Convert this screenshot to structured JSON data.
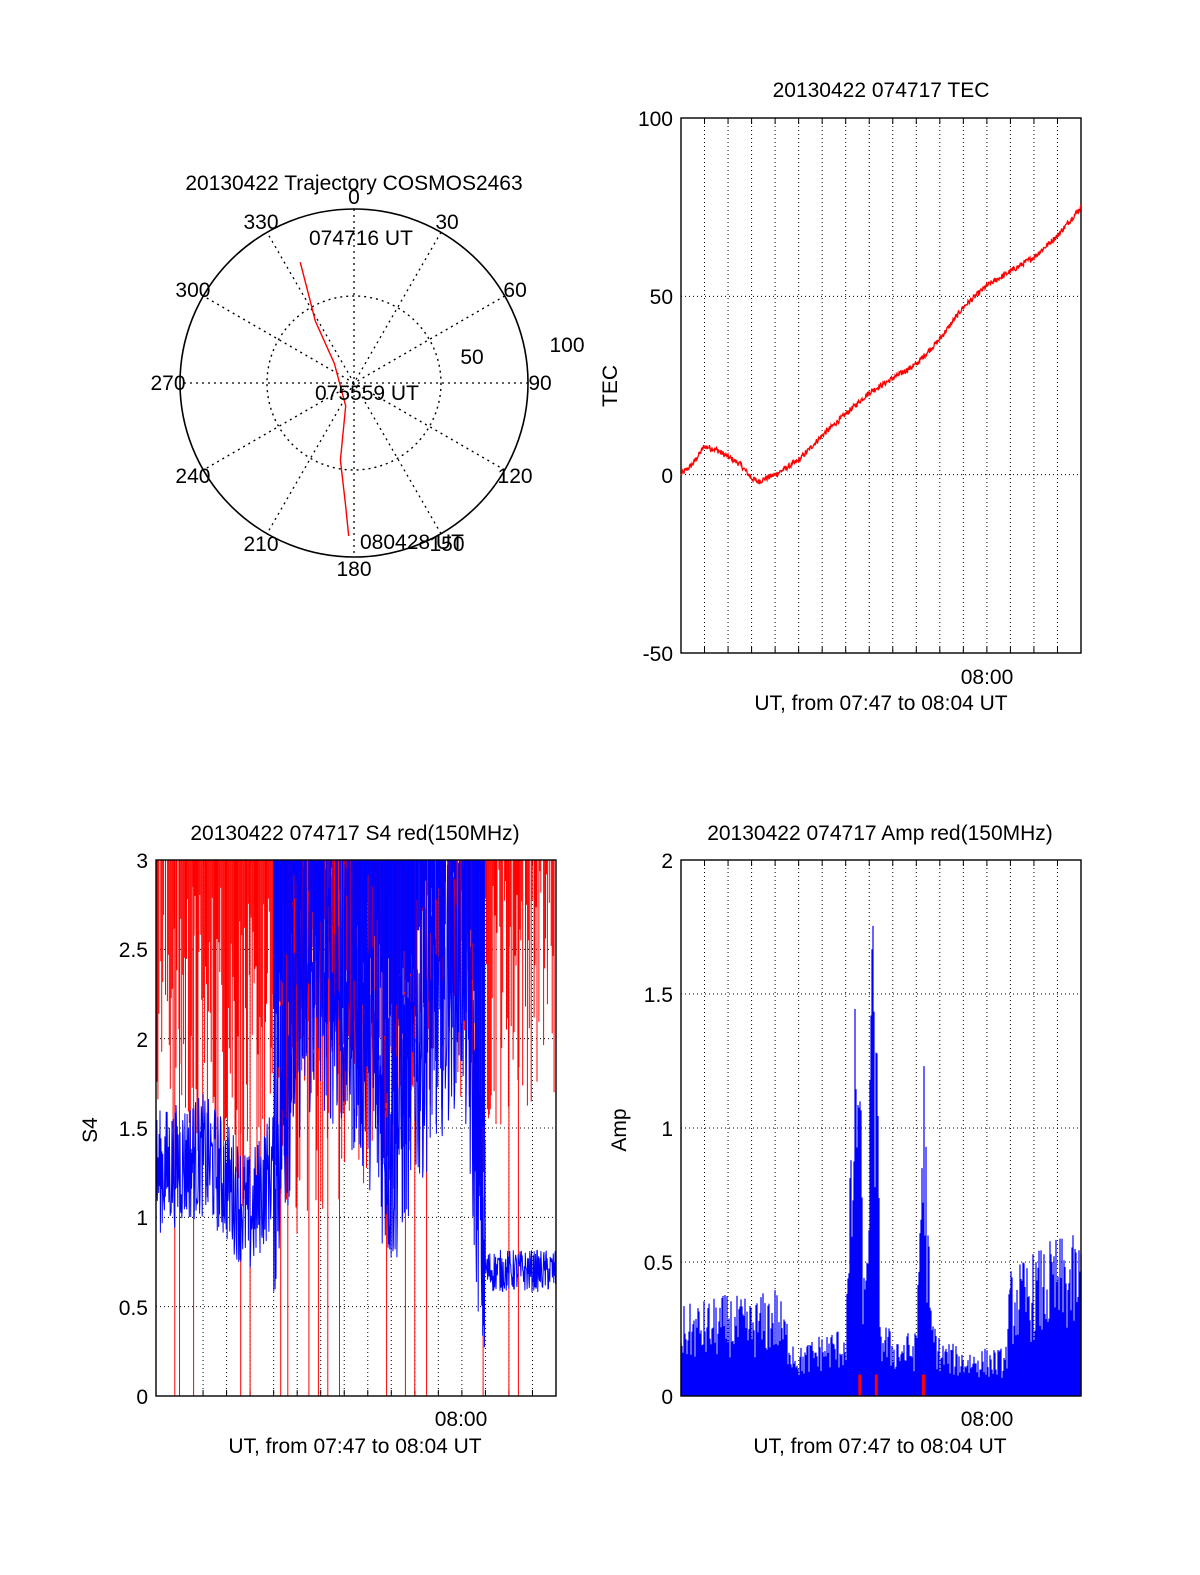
{
  "chart_data": [
    {
      "type": "polar",
      "title": "20130422 Trajectory COSMOS2463",
      "azimuth_labels": [
        "0",
        "30",
        "60",
        "90",
        "120",
        "150",
        "180",
        "210",
        "240",
        "270",
        "300",
        "330"
      ],
      "radius_labels": [
        "50",
        "100"
      ],
      "trajectory": {
        "color": "#ff0000",
        "points": [
          {
            "az": 336,
            "r": 76
          },
          {
            "az": 333,
            "r": 58
          },
          {
            "az": 328,
            "r": 42
          },
          {
            "az": 315,
            "r": 16
          },
          {
            "az": 200,
            "r": 14
          },
          {
            "az": 190,
            "r": 45
          },
          {
            "az": 184,
            "r": 70
          },
          {
            "az": 182,
            "r": 88
          }
        ],
        "labels": [
          {
            "text": "074716 UT",
            "az": 357,
            "r": 80
          },
          {
            "text": "075559 UT",
            "az": 180,
            "r": 0
          },
          {
            "text": "080428 UT",
            "az": 176,
            "r": 95
          }
        ]
      }
    },
    {
      "type": "line",
      "title": "20130422 074717 TEC",
      "xlabel": "UT, from 07:47 to 08:04 UT",
      "ylabel": "TEC",
      "xlim": [
        "07:47",
        "08:04"
      ],
      "ylim": [
        -50,
        100
      ],
      "yticks": [
        "-50",
        "0",
        "50",
        "100"
      ],
      "xtick_label": "08:00",
      "grid": true,
      "series": [
        {
          "color": "#ff0000",
          "x_minutes": [
            0,
            0.5,
            1.0,
            1.5,
            2.0,
            2.5,
            3.0,
            3.3,
            3.6,
            4.0,
            5.0,
            6.0,
            7.0,
            8.0,
            9.0,
            10.0,
            11.0,
            12.0,
            13.0,
            14.0,
            15.0,
            16.0,
            17.0
          ],
          "y": [
            0,
            3,
            8,
            7,
            5,
            3,
            -1,
            -2,
            -1,
            0,
            4,
            11,
            17,
            23,
            27,
            31,
            38,
            47,
            53,
            57,
            61,
            67,
            75
          ]
        }
      ]
    },
    {
      "type": "line",
      "title": "20130422 074717 S4 red(150MHz)",
      "xlabel": "UT, from 07:47 to 08:04 UT",
      "ylabel": "S4",
      "xlim": [
        "07:47",
        "08:04"
      ],
      "ylim": [
        0,
        3
      ],
      "yticks": [
        "0",
        "0.5",
        "1",
        "1.5",
        "2",
        "2.5",
        "3"
      ],
      "xtick_label": "08:00",
      "grid": true,
      "series": [
        {
          "color": "#ff0000",
          "x_minutes": [
            0,
            1,
            2,
            3,
            4,
            5,
            6,
            7,
            8,
            9,
            10,
            11,
            12,
            13,
            14,
            15,
            16,
            17
          ],
          "y": [
            2.9,
            2.6,
            2.3,
            2.5,
            2.2,
            2.4,
            2.1,
            2.3,
            2.2,
            2.5,
            2.4,
            2.6,
            2.7,
            2.8,
            2.7,
            2.8,
            2.9,
            2.9
          ]
        },
        {
          "color": "#0000ff",
          "x_minutes": [
            0,
            1,
            2,
            3,
            4,
            5,
            6,
            7,
            8,
            9,
            10,
            11,
            12,
            13,
            14,
            15,
            16,
            17
          ],
          "y": [
            1.25,
            1.3,
            1.35,
            1.2,
            1.0,
            1.3,
            2.2,
            2.4,
            2.2,
            2.0,
            1.4,
            1.9,
            2.2,
            2.5,
            0.7,
            0.7,
            0.7,
            0.7
          ]
        }
      ]
    },
    {
      "type": "line",
      "title": "20130422 074717 Amp red(150MHz)",
      "xlabel": "UT, from 07:47 to 08:04 UT",
      "ylabel": "Amp",
      "xlim": [
        "07:47",
        "08:04"
      ],
      "ylim": [
        0,
        2
      ],
      "yticks": [
        "0",
        "0.5",
        "1",
        "1.5",
        "2"
      ],
      "xtick_label": "08:00",
      "grid": true,
      "series": [
        {
          "color": "#0000ff",
          "x_minutes": [
            0,
            1,
            2,
            3,
            4,
            5,
            6,
            7,
            7.5,
            7.8,
            8.2,
            8.5,
            9,
            10,
            10.3,
            10.6,
            11,
            12,
            13,
            13.8,
            14,
            15,
            16,
            17
          ],
          "y": [
            0.28,
            0.3,
            0.32,
            0.3,
            0.35,
            0.15,
            0.2,
            0.22,
            1.5,
            0.3,
            1.75,
            0.25,
            0.2,
            0.2,
            1.2,
            0.3,
            0.18,
            0.15,
            0.15,
            0.15,
            0.4,
            0.45,
            0.5,
            0.5
          ]
        },
        {
          "color": "#ff0000",
          "x_minutes": [
            7.6,
            8.3,
            10.3
          ],
          "y": [
            0.08,
            0.08,
            0.08
          ]
        }
      ]
    }
  ]
}
